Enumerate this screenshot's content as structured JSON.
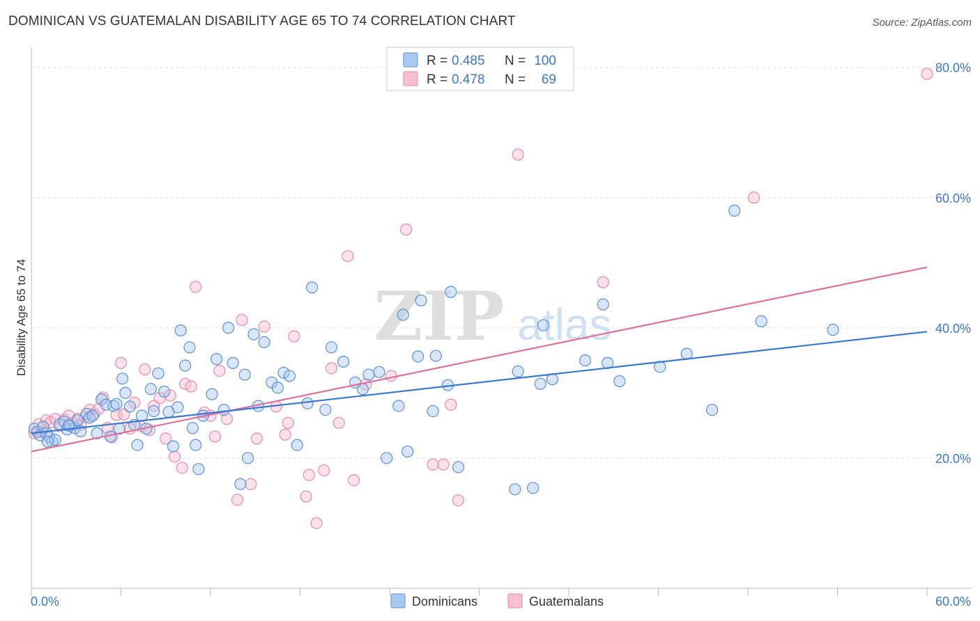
{
  "title": "DOMINICAN VS GUATEMALAN DISABILITY AGE 65 TO 74 CORRELATION CHART",
  "source": "Source: ZipAtlas.com",
  "watermark": {
    "zip": "ZIP",
    "atlas": "atlas"
  },
  "colors": {
    "blue_fill": "#a8c8f0",
    "blue_stroke": "#5b8fd4",
    "blue_line": "#3a78d0",
    "pink_fill": "#f7bfd0",
    "pink_stroke": "#e88aa8",
    "pink_line": "#e0709a",
    "tick_text": "#3a78d0",
    "grid": "#dddddd"
  },
  "legend": {
    "rows": [
      {
        "r_label": "R =",
        "r_value": "0.485",
        "n_label": "N =",
        "n_value": "100"
      },
      {
        "r_label": "R =",
        "r_value": "0.478",
        "n_label": "N =",
        "n_value": "69"
      }
    ]
  },
  "bottom_legend": [
    "Dominicans",
    "Guatemalans"
  ],
  "chart_data": {
    "type": "scatter",
    "title": "DOMINICAN VS GUATEMALAN DISABILITY AGE 65 TO 74 CORRELATION CHART",
    "xlabel": "",
    "ylabel": "Disability Age 65 to 74",
    "xlim": [
      0,
      60
    ],
    "ylim": [
      0,
      82
    ],
    "x_tick_labels": [
      "0.0%",
      "60.0%"
    ],
    "y_ticks": [
      20,
      40,
      60,
      80
    ],
    "y_tick_labels": [
      "20.0%",
      "40.0%",
      "60.0%",
      "80.0%"
    ],
    "grid": true,
    "legend_position": "top-center",
    "series": [
      {
        "name": "Dominicans",
        "color": "#a8c8f0",
        "trend": {
          "x": [
            0,
            60
          ],
          "y": [
            23.8,
            39.4
          ]
        },
        "points": [
          [
            0.2,
            24.5
          ],
          [
            0.4,
            24.0
          ],
          [
            0.6,
            23.5
          ],
          [
            0.8,
            24.8
          ],
          [
            1.0,
            23.8
          ],
          [
            1.2,
            23.2
          ],
          [
            1.4,
            22.5
          ],
          [
            1.6,
            22.8
          ],
          [
            1.9,
            25.2
          ],
          [
            2.2,
            25.6
          ],
          [
            2.4,
            24.4
          ],
          [
            2.6,
            25.0
          ],
          [
            2.9,
            24.6
          ],
          [
            3.1,
            25.8
          ],
          [
            3.3,
            24.1
          ],
          [
            3.7,
            26.8
          ],
          [
            3.9,
            26.2
          ],
          [
            4.1,
            26.5
          ],
          [
            4.4,
            23.8
          ],
          [
            4.7,
            29.0
          ],
          [
            5.0,
            28.2
          ],
          [
            5.3,
            23.3
          ],
          [
            5.5,
            28.0
          ],
          [
            5.7,
            28.3
          ],
          [
            5.9,
            24.5
          ],
          [
            6.1,
            32.2
          ],
          [
            6.3,
            30.0
          ],
          [
            6.6,
            27.9
          ],
          [
            6.9,
            25.1
          ],
          [
            7.1,
            22.0
          ],
          [
            7.4,
            26.5
          ],
          [
            7.7,
            24.5
          ],
          [
            8.0,
            30.6
          ],
          [
            8.2,
            27.2
          ],
          [
            8.5,
            33.0
          ],
          [
            8.9,
            30.2
          ],
          [
            9.2,
            27.1
          ],
          [
            9.5,
            21.8
          ],
          [
            9.8,
            27.8
          ],
          [
            10.0,
            39.6
          ],
          [
            10.3,
            34.2
          ],
          [
            10.6,
            37.0
          ],
          [
            10.8,
            24.6
          ],
          [
            11.0,
            22.0
          ],
          [
            11.2,
            18.3
          ],
          [
            11.5,
            26.5
          ],
          [
            12.1,
            29.8
          ],
          [
            12.4,
            35.2
          ],
          [
            12.9,
            27.4
          ],
          [
            13.2,
            40.0
          ],
          [
            13.5,
            34.6
          ],
          [
            14.0,
            16.0
          ],
          [
            14.3,
            32.8
          ],
          [
            14.5,
            20.0
          ],
          [
            14.9,
            39.0
          ],
          [
            15.2,
            28.0
          ],
          [
            15.6,
            37.8
          ],
          [
            16.1,
            31.6
          ],
          [
            16.5,
            30.8
          ],
          [
            16.9,
            33.1
          ],
          [
            17.3,
            32.6
          ],
          [
            17.8,
            22.0
          ],
          [
            18.5,
            28.4
          ],
          [
            18.8,
            46.2
          ],
          [
            19.7,
            27.4
          ],
          [
            20.1,
            37.0
          ],
          [
            20.9,
            34.8
          ],
          [
            21.7,
            31.6
          ],
          [
            22.2,
            30.6
          ],
          [
            22.6,
            32.8
          ],
          [
            23.3,
            33.2
          ],
          [
            23.8,
            20.0
          ],
          [
            24.6,
            28.0
          ],
          [
            24.9,
            42.0
          ],
          [
            25.2,
            21.0
          ],
          [
            25.9,
            35.6
          ],
          [
            26.1,
            44.2
          ],
          [
            26.9,
            27.2
          ],
          [
            27.1,
            35.7
          ],
          [
            27.9,
            31.2
          ],
          [
            28.1,
            45.5
          ],
          [
            28.6,
            18.6
          ],
          [
            32.4,
            15.2
          ],
          [
            32.6,
            33.3
          ],
          [
            33.6,
            15.4
          ],
          [
            34.1,
            31.4
          ],
          [
            34.3,
            40.4
          ],
          [
            34.9,
            32.1
          ],
          [
            37.1,
            35.0
          ],
          [
            38.3,
            43.6
          ],
          [
            38.6,
            34.6
          ],
          [
            39.4,
            31.8
          ],
          [
            42.1,
            34.0
          ],
          [
            43.9,
            36.0
          ],
          [
            45.6,
            27.4
          ],
          [
            47.1,
            58.0
          ],
          [
            48.9,
            41.0
          ],
          [
            53.7,
            39.7
          ],
          [
            1.1,
            22.5
          ],
          [
            2.5,
            25.0
          ]
        ]
      },
      {
        "name": "Guatemalans",
        "color": "#f7bfd0",
        "trend": {
          "x": [
            0,
            60
          ],
          "y": [
            21.0,
            49.3
          ]
        },
        "points": [
          [
            0.2,
            23.8
          ],
          [
            0.5,
            25.2
          ],
          [
            0.7,
            24.0
          ],
          [
            1.0,
            25.8
          ],
          [
            1.3,
            25.5
          ],
          [
            1.6,
            26.0
          ],
          [
            1.9,
            24.9
          ],
          [
            2.2,
            25.9
          ],
          [
            2.5,
            26.5
          ],
          [
            2.8,
            25.4
          ],
          [
            3.1,
            26.0
          ],
          [
            3.3,
            25.1
          ],
          [
            3.6,
            26.3
          ],
          [
            3.9,
            27.4
          ],
          [
            4.2,
            26.8
          ],
          [
            4.5,
            27.5
          ],
          [
            4.8,
            29.3
          ],
          [
            5.1,
            24.6
          ],
          [
            5.4,
            23.2
          ],
          [
            5.7,
            26.6
          ],
          [
            6.0,
            34.6
          ],
          [
            6.2,
            26.7
          ],
          [
            6.6,
            24.5
          ],
          [
            6.9,
            28.5
          ],
          [
            7.3,
            24.9
          ],
          [
            7.6,
            33.6
          ],
          [
            7.9,
            24.3
          ],
          [
            8.2,
            28.0
          ],
          [
            8.6,
            29.2
          ],
          [
            9.0,
            23.0
          ],
          [
            9.3,
            29.6
          ],
          [
            9.6,
            20.2
          ],
          [
            10.1,
            18.5
          ],
          [
            10.3,
            31.4
          ],
          [
            10.7,
            31.0
          ],
          [
            11.0,
            46.3
          ],
          [
            11.6,
            27.0
          ],
          [
            12.0,
            26.5
          ],
          [
            12.3,
            23.3
          ],
          [
            12.6,
            33.4
          ],
          [
            13.1,
            26.0
          ],
          [
            13.8,
            13.6
          ],
          [
            14.1,
            41.2
          ],
          [
            14.7,
            16.0
          ],
          [
            15.1,
            23.0
          ],
          [
            15.6,
            40.2
          ],
          [
            16.4,
            27.9
          ],
          [
            17.0,
            23.6
          ],
          [
            17.2,
            25.4
          ],
          [
            17.6,
            38.7
          ],
          [
            18.4,
            14.1
          ],
          [
            18.6,
            17.4
          ],
          [
            19.1,
            10.0
          ],
          [
            19.6,
            18.1
          ],
          [
            20.1,
            33.8
          ],
          [
            20.6,
            25.4
          ],
          [
            21.2,
            51.0
          ],
          [
            21.6,
            16.6
          ],
          [
            22.4,
            31.3
          ],
          [
            24.1,
            32.6
          ],
          [
            25.1,
            55.1
          ],
          [
            26.9,
            19.0
          ],
          [
            27.6,
            19.0
          ],
          [
            28.1,
            28.2
          ],
          [
            28.6,
            13.5
          ],
          [
            38.3,
            47.0
          ],
          [
            32.6,
            66.6
          ],
          [
            48.4,
            60.0
          ],
          [
            60.0,
            79.0
          ]
        ]
      }
    ]
  }
}
